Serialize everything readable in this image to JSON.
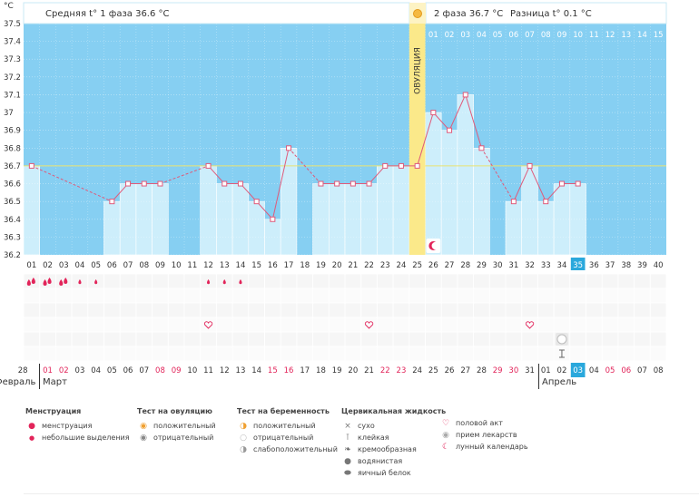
{
  "axis": {
    "unit": "°C",
    "yticks": [
      "37.5",
      "37.4",
      "37.3",
      "37.2",
      "37.1",
      "37",
      "36.9",
      "36.8",
      "36.7",
      "36.6",
      "36.5",
      "36.4",
      "36.3",
      "36.2"
    ]
  },
  "header": {
    "phase1": "Средняя t° 1 фаза 36.6 °C",
    "phase2": "2 фаза 36.7 °C",
    "diff": "Разница t° 0.1 °C"
  },
  "ovulation_label": "ОВУЛЯЦИЯ",
  "top_day_labels": [
    "01",
    "02",
    "03",
    "04",
    "05",
    "06",
    "07",
    "08",
    "09",
    "10",
    "11",
    "12",
    "13",
    "14",
    "15"
  ],
  "cycle_days": [
    "01",
    "02",
    "03",
    "04",
    "05",
    "06",
    "07",
    "08",
    "09",
    "10",
    "11",
    "12",
    "13",
    "14",
    "15",
    "16",
    "17",
    "18",
    "19",
    "20",
    "21",
    "22",
    "23",
    "24",
    "25",
    "26",
    "27",
    "28",
    "29",
    "30",
    "31",
    "32",
    "33",
    "34",
    "35",
    "36",
    "37",
    "38",
    "39",
    "40"
  ],
  "current_cycle_day": "35",
  "dates": [
    {
      "d": "28",
      "red": false
    },
    {
      "d": "01",
      "red": true
    },
    {
      "d": "02",
      "red": true
    },
    {
      "d": "03",
      "red": false
    },
    {
      "d": "04",
      "red": false
    },
    {
      "d": "05",
      "red": false
    },
    {
      "d": "06",
      "red": false
    },
    {
      "d": "07",
      "red": false
    },
    {
      "d": "08",
      "red": true
    },
    {
      "d": "09",
      "red": true
    },
    {
      "d": "10",
      "red": false
    },
    {
      "d": "11",
      "red": false
    },
    {
      "d": "12",
      "red": false
    },
    {
      "d": "13",
      "red": false
    },
    {
      "d": "14",
      "red": false
    },
    {
      "d": "15",
      "red": true
    },
    {
      "d": "16",
      "red": true
    },
    {
      "d": "17",
      "red": false
    },
    {
      "d": "18",
      "red": false
    },
    {
      "d": "19",
      "red": false
    },
    {
      "d": "20",
      "red": false
    },
    {
      "d": "21",
      "red": false
    },
    {
      "d": "22",
      "red": true
    },
    {
      "d": "23",
      "red": true
    },
    {
      "d": "24",
      "red": false
    },
    {
      "d": "25",
      "red": false
    },
    {
      "d": "26",
      "red": false
    },
    {
      "d": "27",
      "red": false
    },
    {
      "d": "28",
      "red": false
    },
    {
      "d": "29",
      "red": true
    },
    {
      "d": "30",
      "red": true
    },
    {
      "d": "31",
      "red": false
    },
    {
      "d": "01",
      "red": false
    },
    {
      "d": "02",
      "red": false
    },
    {
      "d": "03",
      "red": false
    },
    {
      "d": "04",
      "red": false
    },
    {
      "d": "05",
      "red": true
    },
    {
      "d": "06",
      "red": true
    },
    {
      "d": "07",
      "red": false
    },
    {
      "d": "08",
      "red": false
    }
  ],
  "today_index": 34,
  "months": {
    "feb": "Февраль",
    "mar": "Март",
    "apr": "Апрель"
  },
  "chart_data": {
    "type": "line",
    "ylim": [
      36.2,
      37.5
    ],
    "x": [
      "01",
      "02",
      "03",
      "04",
      "05",
      "06",
      "07",
      "08",
      "09",
      "10",
      "11",
      "12",
      "13",
      "14",
      "15",
      "16",
      "17",
      "18",
      "19",
      "20",
      "21",
      "22",
      "23",
      "24",
      "25",
      "26",
      "27",
      "28",
      "29",
      "30",
      "31",
      "32",
      "33",
      "34",
      "35",
      "36",
      "37",
      "38",
      "39",
      "40"
    ],
    "values": [
      36.7,
      null,
      null,
      null,
      null,
      36.5,
      36.6,
      36.6,
      36.6,
      null,
      null,
      36.7,
      36.6,
      36.6,
      36.5,
      36.4,
      36.8,
      null,
      36.6,
      36.6,
      36.6,
      36.6,
      36.7,
      36.7,
      36.7,
      37.0,
      36.9,
      37.1,
      36.8,
      null,
      36.5,
      36.7,
      36.5,
      36.6,
      36.6,
      null,
      null,
      null,
      null,
      null
    ],
    "coverline": 36.7,
    "ovulation_day": "25"
  },
  "markers": {
    "menstruation_heavy_days": [
      1,
      2,
      3
    ],
    "menstruation_light_days": [
      4,
      5,
      12,
      13,
      14
    ],
    "sex_days": [
      12,
      22,
      32
    ],
    "medicine_days": [
      34
    ],
    "sticky_days": [
      34
    ],
    "lunar_days": [
      26
    ]
  },
  "legend": {
    "menstruation": {
      "title": "Менструация",
      "items": [
        "менструация",
        "небольшие выделения"
      ]
    },
    "ovulation_test": {
      "title": "Тест на овуляцию",
      "items": [
        "положительный",
        "отрицательный"
      ]
    },
    "pregnancy_test": {
      "title": "Тест на беременность",
      "items": [
        "положительный",
        "отрицательный",
        "слабоположительный"
      ]
    },
    "cervical": {
      "title": "Цервикальная жидкость",
      "items": [
        "сухо",
        "клейкая",
        "кремообразная",
        "водянистая",
        "яичный белок"
      ]
    },
    "other": {
      "items": [
        "половой акт",
        "прием лекарств",
        "лунный календарь"
      ]
    }
  },
  "colors": {
    "sky": "#86cff2",
    "bar": "#cdeefb",
    "line": "#e05a7a",
    "ovulation": "#fbe98a",
    "accent": "#2aa8dc",
    "red_date": "#e2245a"
  }
}
